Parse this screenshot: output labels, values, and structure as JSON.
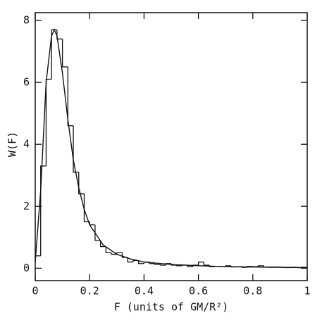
{
  "chart_data": [
    {
      "type": "histogram",
      "xlabel": "F (units of GM/R²)",
      "ylabel": "W(F)",
      "xlim": [
        0,
        1
      ],
      "ylim": [
        -0.4,
        8.25
      ],
      "xticks": [
        0,
        0.2,
        0.4,
        0.6,
        0.8,
        1
      ],
      "yticks": [
        0,
        2,
        4,
        6,
        8
      ],
      "color": "#111111",
      "bins": [
        0,
        0.02,
        0.04,
        0.06,
        0.08,
        0.1,
        0.12,
        0.14,
        0.16,
        0.18,
        0.2,
        0.22,
        0.24,
        0.26,
        0.28,
        0.3,
        0.32,
        0.34,
        0.36,
        0.38,
        0.4,
        0.42,
        0.44,
        0.46,
        0.48,
        0.5,
        0.52,
        0.54,
        0.56,
        0.58,
        0.6,
        0.62,
        0.64,
        0.66,
        0.68,
        0.7,
        0.72,
        0.74,
        0.76,
        0.78,
        0.8,
        0.82,
        0.84,
        0.86,
        0.88,
        0.9,
        0.92,
        0.94,
        0.96,
        0.98,
        1
      ],
      "values": [
        0.4,
        3.3,
        6.1,
        7.7,
        7.4,
        6.5,
        4.6,
        3.1,
        2.4,
        1.5,
        1.4,
        0.9,
        0.7,
        0.5,
        0.45,
        0.5,
        0.35,
        0.2,
        0.25,
        0.15,
        0.2,
        0.15,
        0.12,
        0.1,
        0.15,
        0.1,
        0.08,
        0.1,
        0.05,
        0.1,
        0.2,
        0.1,
        0.05,
        0.06,
        0.05,
        0.08,
        0.04,
        0.05,
        0.03,
        0.06,
        0.05,
        0.08,
        0.04,
        0.03,
        0.04,
        0.03,
        0.02,
        0.03,
        0.02,
        0.03
      ]
    },
    {
      "type": "line",
      "color": "#111111",
      "x": [
        0,
        0.02,
        0.04,
        0.06,
        0.07,
        0.08,
        0.1,
        0.12,
        0.14,
        0.16,
        0.18,
        0.2,
        0.25,
        0.3,
        0.35,
        0.4,
        0.5,
        0.6,
        0.7,
        0.8,
        0.9,
        1
      ],
      "values": [
        0.2,
        2.5,
        6.0,
        7.5,
        7.7,
        7.5,
        6.3,
        4.8,
        3.5,
        2.6,
        1.9,
        1.4,
        0.75,
        0.45,
        0.3,
        0.2,
        0.12,
        0.08,
        0.05,
        0.04,
        0.03,
        0.02
      ]
    }
  ]
}
